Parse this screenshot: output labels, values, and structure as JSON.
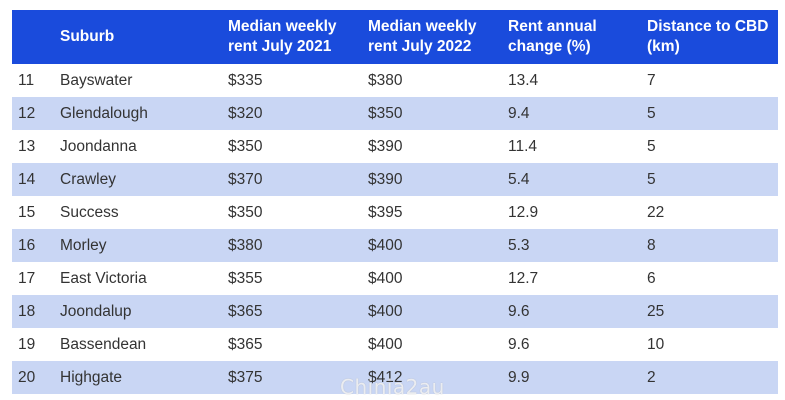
{
  "table": {
    "headers": {
      "rank": "",
      "suburb": "Suburb",
      "rent_2021": "Median weekly rent July 2021",
      "rent_2022": "Median weekly rent July 2022",
      "change": "Rent annual change (%)",
      "distance": "Distance to CBD (km)"
    },
    "rows": [
      {
        "rank": "11",
        "suburb": "Bayswater",
        "rent_2021": "$335",
        "rent_2022": "$380",
        "change": "13.4",
        "distance": "7"
      },
      {
        "rank": "12",
        "suburb": "Glendalough",
        "rent_2021": "$320",
        "rent_2022": "$350",
        "change": "9.4",
        "distance": "5"
      },
      {
        "rank": "13",
        "suburb": "Joondanna",
        "rent_2021": "$350",
        "rent_2022": "$390",
        "change": "11.4",
        "distance": "5"
      },
      {
        "rank": "14",
        "suburb": "Crawley",
        "rent_2021": "$370",
        "rent_2022": "$390",
        "change": "5.4",
        "distance": "5"
      },
      {
        "rank": "15",
        "suburb": "Success",
        "rent_2021": "$350",
        "rent_2022": "$395",
        "change": "12.9",
        "distance": "22"
      },
      {
        "rank": "16",
        "suburb": "Morley",
        "rent_2021": "$380",
        "rent_2022": "$400",
        "change": "5.3",
        "distance": "8"
      },
      {
        "rank": "17",
        "suburb": "East Victoria",
        "rent_2021": "$355",
        "rent_2022": "$400",
        "change": "12.7",
        "distance": "6"
      },
      {
        "rank": "18",
        "suburb": "Joondalup",
        "rent_2021": "$365",
        "rent_2022": "$400",
        "change": "9.6",
        "distance": "25"
      },
      {
        "rank": "19",
        "suburb": "Bassendean",
        "rent_2021": "$365",
        "rent_2022": "$400",
        "change": "9.6",
        "distance": "10"
      },
      {
        "rank": "20",
        "suburb": "Highgate",
        "rent_2021": "$375",
        "rent_2022": "$412",
        "change": "9.9",
        "distance": "2"
      }
    ]
  },
  "colors": {
    "header_bg": "#1a4bdc",
    "header_text": "#ffffff",
    "stripe": "#c9d6f4",
    "row_text": "#333333"
  },
  "watermark": "Chinia2au"
}
